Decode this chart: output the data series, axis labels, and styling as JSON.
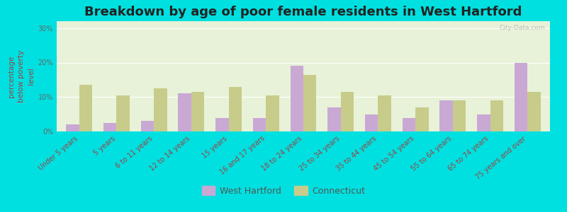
{
  "title": "Breakdown by age of poor female residents in West Hartford",
  "ylabel": "percentage\nbelow poverty\nlevel",
  "categories": [
    "Under 5 years",
    "5 years",
    "6 to 11 years",
    "12 to 14 years",
    "15 years",
    "16 and 17 years",
    "18 to 24 years",
    "25 to 34 years",
    "35 to 44 years",
    "45 to 54 years",
    "55 to 64 years",
    "65 to 74 years",
    "75 years and over"
  ],
  "west_hartford": [
    2.0,
    2.5,
    3.0,
    11.0,
    4.0,
    4.0,
    19.0,
    7.0,
    5.0,
    4.0,
    9.0,
    5.0,
    20.0
  ],
  "connecticut": [
    13.5,
    10.5,
    12.5,
    11.5,
    13.0,
    10.5,
    16.5,
    11.5,
    10.5,
    7.0,
    9.0,
    9.0,
    11.5
  ],
  "west_hartford_color": "#c9a8d4",
  "connecticut_color": "#c8cc8a",
  "plot_bg_color": "#e8f2d8",
  "outer_background": "#00e0e0",
  "yticks": [
    0,
    10,
    20,
    30
  ],
  "ytick_labels": [
    "0%",
    "10%",
    "20%",
    "30%"
  ],
  "ylim": [
    0,
    32
  ],
  "title_fontsize": 13,
  "axis_label_fontsize": 7.5,
  "tick_fontsize": 7,
  "legend_fontsize": 9,
  "watermark": "City-Data.com",
  "xlabel_color": "#994444",
  "ylabel_color": "#994444",
  "ytick_color": "#666666"
}
